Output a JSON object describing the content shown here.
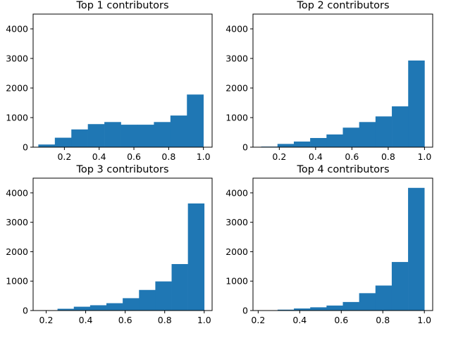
{
  "colors": {
    "bar": "#1f77b4",
    "axis": "#000000",
    "background": "#ffffff"
  },
  "chart_data": [
    {
      "type": "bar",
      "title": "Top 1 contributors",
      "xlabel": "",
      "ylabel": "",
      "xlim": [
        0.02,
        1.05
      ],
      "ylim": [
        0,
        4500
      ],
      "xticks": [
        0.2,
        0.4,
        0.6,
        0.8,
        1.0
      ],
      "xtick_labels": [
        "0.2",
        "0.4",
        "0.6",
        "0.8",
        "1.0"
      ],
      "yticks": [
        0,
        1000,
        2000,
        3000,
        4000
      ],
      "ytick_labels": [
        "0",
        "1000",
        "2000",
        "3000",
        "4000"
      ],
      "bin_edges": [
        0.05,
        0.145,
        0.24,
        0.335,
        0.43,
        0.525,
        0.62,
        0.715,
        0.81,
        0.905,
        1.0
      ],
      "values": [
        90,
        320,
        600,
        780,
        850,
        760,
        760,
        850,
        1070,
        1780
      ],
      "grid": false
    },
    {
      "type": "bar",
      "title": "Top 2 contributors",
      "xlabel": "",
      "ylabel": "",
      "xlim": [
        0.055,
        1.045
      ],
      "ylim": [
        0,
        4500
      ],
      "xticks": [
        0.2,
        0.4,
        0.6,
        0.8,
        1.0
      ],
      "xtick_labels": [
        "0.2",
        "0.4",
        "0.6",
        "0.8",
        "1.0"
      ],
      "yticks": [
        0,
        1000,
        2000,
        3000,
        4000
      ],
      "ytick_labels": [
        "0",
        "1000",
        "2000",
        "3000",
        "4000"
      ],
      "bin_edges": [
        0.1,
        0.19,
        0.28,
        0.37,
        0.46,
        0.55,
        0.64,
        0.73,
        0.82,
        0.91,
        1.0
      ],
      "values": [
        20,
        110,
        190,
        310,
        430,
        660,
        850,
        1040,
        1380,
        2930
      ],
      "grid": false
    },
    {
      "type": "bar",
      "title": "Top 3 contributors",
      "xlabel": "",
      "ylabel": "",
      "xlim": [
        0.134,
        1.04
      ],
      "ylim": [
        0,
        4500
      ],
      "xticks": [
        0.2,
        0.4,
        0.6,
        0.8,
        1.0
      ],
      "xtick_labels": [
        "0.2",
        "0.4",
        "0.6",
        "0.8",
        "1.0"
      ],
      "yticks": [
        0,
        1000,
        2000,
        3000,
        4000
      ],
      "ytick_labels": [
        "0",
        "1000",
        "2000",
        "3000",
        "4000"
      ],
      "bin_edges": [
        0.175,
        0.2575,
        0.34,
        0.4225,
        0.505,
        0.5875,
        0.67,
        0.7525,
        0.835,
        0.9175,
        1.0
      ],
      "values": [
        10,
        60,
        130,
        180,
        250,
        420,
        700,
        990,
        1580,
        3640
      ],
      "grid": false
    },
    {
      "type": "bar",
      "title": "Top 4 contributors",
      "xlabel": "",
      "ylabel": "",
      "xlim": [
        0.175,
        1.04
      ],
      "ylim": [
        0,
        4500
      ],
      "xticks": [
        0.2,
        0.4,
        0.6,
        0.8,
        1.0
      ],
      "xtick_labels": [
        "0.2",
        "0.4",
        "0.6",
        "0.8",
        "1.0"
      ],
      "yticks": [
        0,
        1000,
        2000,
        3000,
        4000
      ],
      "ytick_labels": [
        "0",
        "1000",
        "2000",
        "3000",
        "4000"
      ],
      "bin_edges": [
        0.215,
        0.2935,
        0.372,
        0.4505,
        0.529,
        0.6075,
        0.686,
        0.7645,
        0.843,
        0.9215,
        1.0
      ],
      "values": [
        10,
        30,
        70,
        110,
        170,
        290,
        590,
        850,
        1650,
        4170
      ],
      "grid": false
    }
  ]
}
